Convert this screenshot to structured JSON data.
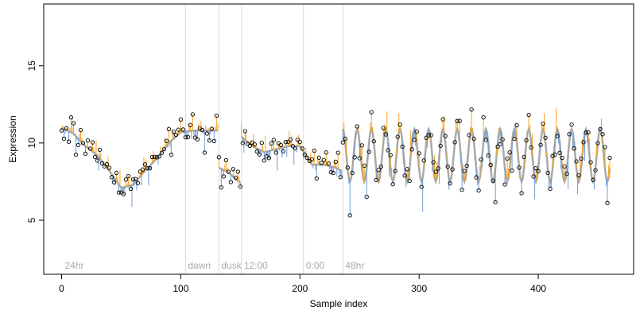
{
  "chart_data": {
    "type": "scatter",
    "title": "",
    "xlabel": "Sample index",
    "ylabel": "Expression",
    "xlim": [
      -15,
      480
    ],
    "ylim": [
      1.5,
      19
    ],
    "xticks": [
      0,
      100,
      200,
      300,
      400
    ],
    "yticks": [
      5,
      10,
      15
    ],
    "grid": false,
    "legend": "none",
    "colors": {
      "fitted_line": "#a9a9a9",
      "residual_above": "#f5a623",
      "residual_below": "#6f9ed8",
      "points": "#000000",
      "phase_line": "#d9d9d9",
      "phase_text": "#aaaaaa"
    },
    "phases": [
      {
        "x": 0,
        "label": "24hr",
        "line": false
      },
      {
        "x": 104,
        "label": "dawn",
        "line": true
      },
      {
        "x": 132,
        "label": "dusk",
        "line": true
      },
      {
        "x": 151,
        "label": "12:00",
        "line": true
      },
      {
        "x": 203,
        "label": "0:00",
        "line": true
      },
      {
        "x": 236,
        "label": "48hr",
        "line": true
      }
    ],
    "segments": [
      {
        "start": 0,
        "end": 131,
        "x": [
          0,
          10,
          20,
          30,
          40,
          50,
          60,
          70,
          80,
          90,
          100,
          110,
          120,
          131
        ],
        "fit": [
          11.0,
          10.6,
          9.8,
          9.2,
          8.2,
          7.1,
          7.3,
          8.2,
          9.0,
          10.0,
          10.7,
          10.8,
          10.8,
          10.8
        ]
      },
      {
        "start": 132,
        "end": 150,
        "x": [
          132,
          140,
          150
        ],
        "fit": [
          8.4,
          8.1,
          7.4
        ]
      },
      {
        "start": 151,
        "end": 235,
        "x": [
          151,
          160,
          170,
          180,
          190,
          200,
          210,
          220,
          230,
          235
        ],
        "fit": [
          10.4,
          9.8,
          9.4,
          9.6,
          9.8,
          9.8,
          8.6,
          8.6,
          8.4,
          8.2
        ]
      },
      {
        "start": 236,
        "end": 460,
        "oscillation": {
          "mean": 9.2,
          "amplitude": 1.7,
          "period": 12,
          "phase": 236
        }
      }
    ],
    "points": {
      "count": 461,
      "residuals": [
        0.35,
        -0.6,
        0.8,
        -0.25,
        0.15,
        0.55,
        -0.4,
        0.05,
        -0.75,
        0.45,
        0.25,
        -0.15,
        0.9,
        -0.5,
        0.1,
        0.6,
        -0.3,
        -0.85,
        0.4,
        0.0,
        0.7,
        -0.65,
        0.2,
        1.2,
        -0.35,
        0.3,
        -1.6,
        0.5,
        -0.1,
        0.85,
        -0.45,
        0.15,
        1.1,
        -0.2,
        -0.7,
        0.65,
        0.05,
        -1.2,
        0.4,
        0.25,
        -0.55,
        1.4,
        -0.05,
        -0.3,
        0.75,
        -0.9,
        0.2,
        0.55,
        -0.4,
        0.1,
        -1.9,
        0.6,
        0.35,
        -0.25,
        0.95,
        -0.6,
        0.0,
        0.45,
        -0.15,
        1.3,
        -0.5
      ]
    }
  }
}
